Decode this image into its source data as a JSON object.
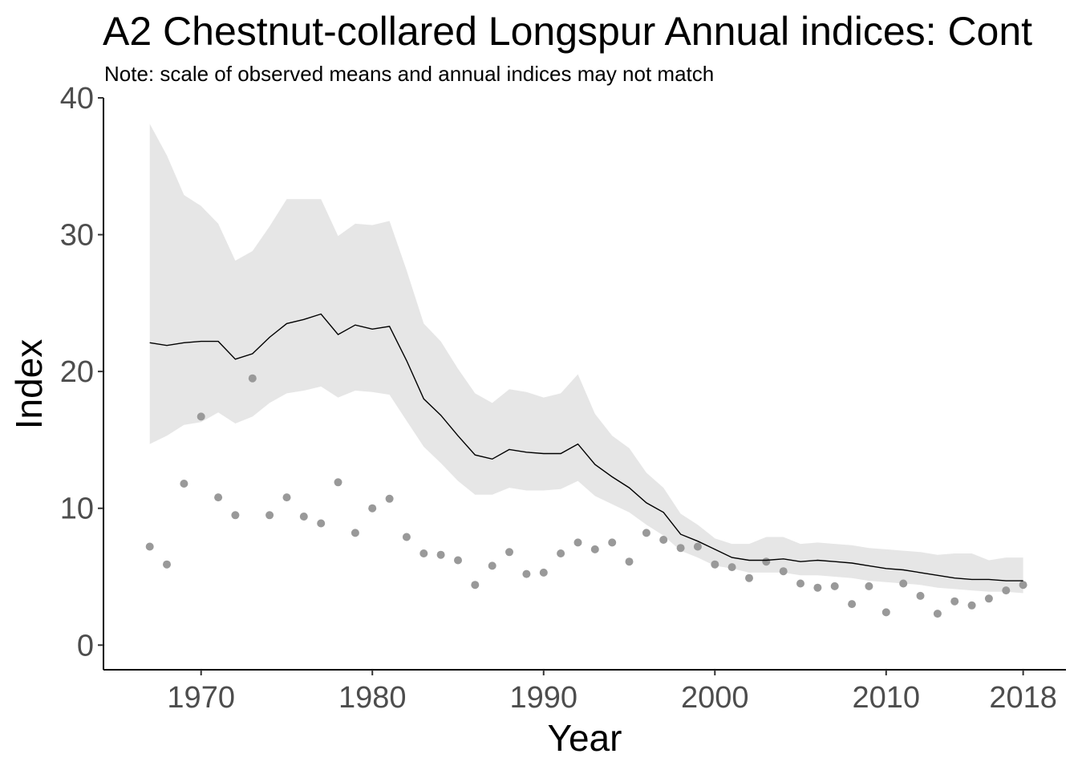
{
  "chart_data": {
    "type": "line",
    "title": "A2 Chestnut-collared Longspur Annual indices: Cont",
    "subtitle": "Note: scale of observed means and annual indices may not match",
    "xlabel": "Year",
    "ylabel": "Index",
    "xlim": [
      1964.3,
      2020.5
    ],
    "ylim": [
      -1.8,
      40
    ],
    "x_ticks": [
      1970,
      1980,
      1990,
      2000,
      2010,
      2018
    ],
    "y_ticks": [
      0,
      10,
      20,
      30,
      40
    ],
    "grid": false,
    "colors": {
      "ribbon": "#e6e6e6",
      "line": "#000000",
      "points": "#999999",
      "axis": "#000000"
    },
    "series": [
      {
        "kind": "ribbon",
        "x": [
          1967,
          1968,
          1969,
          1970,
          1971,
          1972,
          1973,
          1974,
          1975,
          1976,
          1977,
          1978,
          1979,
          1980,
          1981,
          1982,
          1983,
          1984,
          1985,
          1986,
          1987,
          1988,
          1989,
          1990,
          1991,
          1992,
          1993,
          1994,
          1995,
          1996,
          1997,
          1998,
          1999,
          2000,
          2001,
          2002,
          2003,
          2004,
          2005,
          2006,
          2007,
          2008,
          2009,
          2010,
          2011,
          2012,
          2013,
          2014,
          2015,
          2016,
          2017,
          2018
        ],
        "lower": [
          14.7,
          15.3,
          16.1,
          16.3,
          17.0,
          16.2,
          16.7,
          17.7,
          18.4,
          18.6,
          18.9,
          18.1,
          18.6,
          18.5,
          18.3,
          16.4,
          14.5,
          13.3,
          12.0,
          11.0,
          11.0,
          11.5,
          11.3,
          11.3,
          11.4,
          12.0,
          10.9,
          10.3,
          9.7,
          8.8,
          8.0,
          6.9,
          6.4,
          5.8,
          5.6,
          5.3,
          5.3,
          5.3,
          5.1,
          5.1,
          5.0,
          4.9,
          4.7,
          4.6,
          4.5,
          4.4,
          4.2,
          4.1,
          4.0,
          3.9,
          3.9,
          3.8
        ],
        "upper": [
          38.1,
          35.8,
          32.9,
          32.1,
          30.8,
          28.1,
          28.8,
          30.6,
          32.6,
          32.6,
          32.6,
          29.9,
          30.8,
          30.7,
          31.0,
          27.4,
          23.5,
          22.2,
          20.2,
          18.4,
          17.7,
          18.7,
          18.5,
          18.1,
          18.4,
          19.8,
          16.9,
          15.3,
          14.4,
          12.6,
          11.5,
          9.6,
          8.8,
          7.8,
          7.4,
          7.4,
          7.9,
          7.9,
          7.4,
          7.5,
          7.4,
          7.3,
          7.1,
          7.0,
          6.9,
          6.8,
          6.6,
          6.7,
          6.7,
          6.2,
          6.4,
          6.4
        ]
      },
      {
        "kind": "line",
        "x": [
          1967,
          1968,
          1969,
          1970,
          1971,
          1972,
          1973,
          1974,
          1975,
          1976,
          1977,
          1978,
          1979,
          1980,
          1981,
          1982,
          1983,
          1984,
          1985,
          1986,
          1987,
          1988,
          1989,
          1990,
          1991,
          1992,
          1993,
          1994,
          1995,
          1996,
          1997,
          1998,
          1999,
          2000,
          2001,
          2002,
          2003,
          2004,
          2005,
          2006,
          2007,
          2008,
          2009,
          2010,
          2011,
          2012,
          2013,
          2014,
          2015,
          2016,
          2017,
          2018
        ],
        "values": [
          22.1,
          21.9,
          22.1,
          22.2,
          22.2,
          20.9,
          21.3,
          22.5,
          23.5,
          23.8,
          24.2,
          22.7,
          23.4,
          23.1,
          23.3,
          20.8,
          18.0,
          16.8,
          15.3,
          13.9,
          13.6,
          14.3,
          14.1,
          14.0,
          14.0,
          14.7,
          13.2,
          12.3,
          11.5,
          10.4,
          9.7,
          8.1,
          7.6,
          7.0,
          6.4,
          6.2,
          6.2,
          6.3,
          6.1,
          6.2,
          6.1,
          6.0,
          5.8,
          5.6,
          5.5,
          5.3,
          5.1,
          4.9,
          4.8,
          4.8,
          4.7,
          4.7
        ]
      },
      {
        "kind": "points",
        "x": [
          1967,
          1968,
          1969,
          1970,
          1971,
          1972,
          1973,
          1974,
          1975,
          1976,
          1977,
          1978,
          1979,
          1980,
          1981,
          1982,
          1983,
          1984,
          1985,
          1986,
          1987,
          1988,
          1989,
          1990,
          1991,
          1992,
          1993,
          1994,
          1995,
          1996,
          1997,
          1998,
          1999,
          2000,
          2001,
          2002,
          2003,
          2004,
          2005,
          2006,
          2007,
          2008,
          2009,
          2010,
          2011,
          2012,
          2013,
          2014,
          2015,
          2016,
          2017,
          2018
        ],
        "values": [
          7.2,
          5.9,
          11.8,
          16.7,
          10.8,
          9.5,
          19.5,
          9.5,
          10.8,
          9.4,
          8.9,
          11.9,
          8.2,
          10.0,
          10.7,
          7.9,
          6.7,
          6.6,
          6.2,
          4.4,
          5.8,
          6.8,
          5.2,
          5.3,
          6.7,
          7.5,
          7.0,
          7.5,
          6.1,
          8.2,
          7.7,
          7.1,
          7.2,
          5.9,
          5.7,
          4.9,
          6.1,
          5.4,
          4.5,
          4.2,
          4.3,
          3.0,
          4.3,
          2.4,
          4.5,
          3.6,
          2.3,
          3.2,
          2.9,
          3.4,
          4.0,
          4.4
        ]
      }
    ]
  }
}
